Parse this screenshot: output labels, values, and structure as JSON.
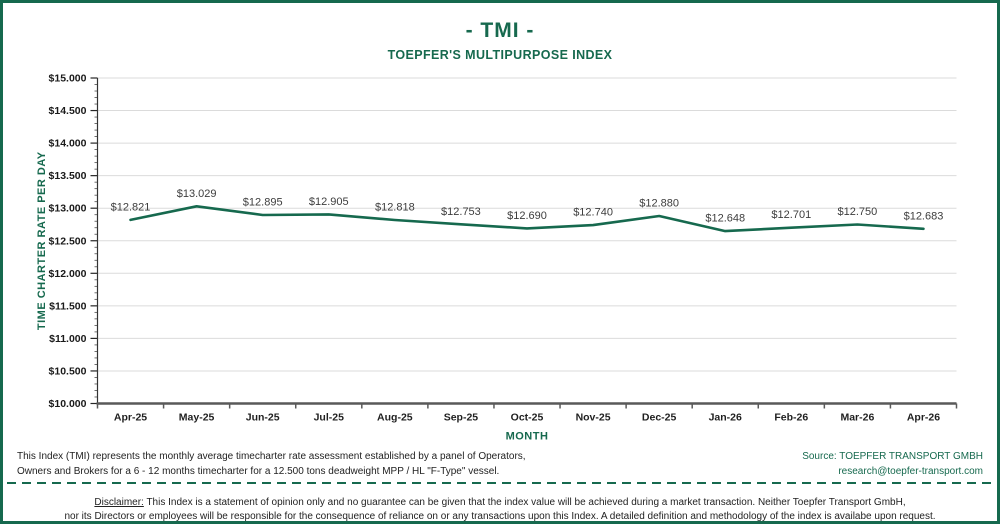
{
  "header": {
    "title": "- TMI -",
    "subtitle": "TOEPFER'S MULTIPURPOSE INDEX"
  },
  "chart_data": {
    "type": "line",
    "title": "- TMI -",
    "subtitle": "TOEPFER'S MULTIPURPOSE INDEX",
    "xlabel": "MONTH",
    "ylabel": "TIME CHARTER RATE PER DAY",
    "categories": [
      "Apr-25",
      "May-25",
      "Jun-25",
      "Jul-25",
      "Aug-25",
      "Sep-25",
      "Oct-25",
      "Nov-25",
      "Dec-25",
      "Jan-26",
      "Feb-26",
      "Mar-26",
      "Apr-26"
    ],
    "values": [
      12821,
      13029,
      12895,
      12905,
      12818,
      12753,
      12690,
      12740,
      12880,
      12648,
      12701,
      12750,
      12683
    ],
    "point_labels": [
      "$12.821",
      "$13.029",
      "$12.895",
      "$12.905",
      "$12.818",
      "$12.753",
      "$12.690",
      "$12.740",
      "$12.880",
      "$12.648",
      "$12.701",
      "$12.750",
      "$12.683"
    ],
    "ylim": [
      10000,
      15000
    ],
    "ytick_step": 500,
    "minor_tick_step": 100,
    "ytick_labels": [
      "$10.000",
      "$10.500",
      "$11.000",
      "$11.500",
      "$12.000",
      "$12.500",
      "$13.000",
      "$13.500",
      "$14.000",
      "$14.500",
      "$15.000"
    ],
    "grid": true,
    "legend": "none",
    "line_color": "#16694E"
  },
  "footer": {
    "note_line1": "This Index (TMI) represents the monthly average timecharter rate assessment established by a panel of Operators,",
    "note_line2": "Owners and Brokers for a 6 - 12 months timecharter for a 12.500 tons deadweight MPP / HL \"F-Type\" vessel.",
    "source": "Source: TOEPFER TRANSPORT GMBH",
    "email": "research@toepfer-transport.com"
  },
  "disclaimer": {
    "label": "Disclaimer:",
    "line1": "This Index is a statement of opinion only and no guarantee can be given that the index value will be achieved during a market transaction. Neither Toepfer Transport GmbH,",
    "line2": "nor its Directors or employees will be responsible for the consequence of reliance on or any transactions upon this Index.  A detailed definition and methodology of the index is availabe upon request."
  },
  "colors": {
    "brand_green": "#16694E",
    "gridline": "#DBDBDB",
    "x_axis": "#595959",
    "text_dark": "#1A1A1A"
  }
}
